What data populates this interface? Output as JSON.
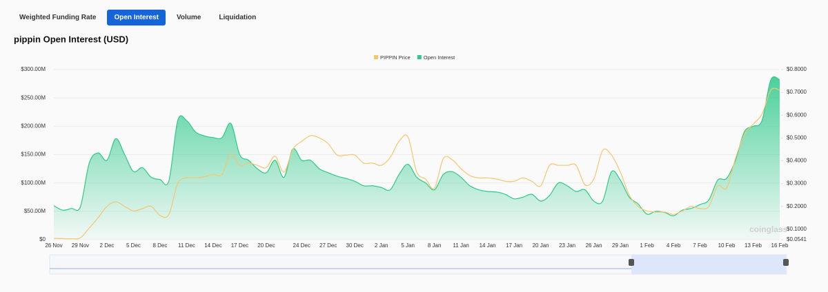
{
  "tabs": [
    "Weighted Funding Rate",
    "Open Interest",
    "Volume",
    "Liquidation"
  ],
  "active_tab": 1,
  "chart_data": {
    "type": "line",
    "title": "pippin Open Interest (USD)",
    "watermark": "coinglass",
    "categories": [
      "26 Nov",
      null,
      null,
      "29 Nov",
      null,
      null,
      "2 Dec",
      null,
      null,
      "5 Dec",
      null,
      null,
      "8 Dec",
      null,
      null,
      "11 Dec",
      null,
      null,
      "14 Dec",
      null,
      null,
      "17 Dec",
      null,
      null,
      "20 Dec",
      null,
      null,
      null,
      "24 Dec",
      null,
      null,
      "27 Dec",
      null,
      null,
      "30 Dec",
      null,
      null,
      "2 Jan",
      null,
      null,
      "5 Jan",
      null,
      null,
      "8 Jan",
      null,
      null,
      "11 Jan",
      null,
      null,
      "14 Jan",
      null,
      null,
      "17 Jan",
      null,
      null,
      "20 Jan",
      null,
      null,
      "23 Jan",
      null,
      null,
      "26 Jan",
      null,
      null,
      "29 Jan",
      null,
      null,
      "1 Feb",
      null,
      null,
      "4 Feb",
      null,
      null,
      "7 Feb",
      null,
      null,
      "10 Feb",
      null,
      null,
      "13 Feb",
      null,
      null,
      "16 Feb"
    ],
    "series": [
      {
        "name": "PIPPIN Price",
        "type": "line",
        "axis": "y2",
        "color": "#f5c66b",
        "values": [
          0.06,
          0.059,
          0.058,
          0.062,
          0.105,
          0.15,
          0.2,
          0.22,
          0.2,
          0.18,
          0.19,
          0.2,
          0.16,
          0.165,
          0.3,
          0.325,
          0.325,
          0.33,
          0.34,
          0.34,
          0.43,
          0.38,
          0.39,
          0.38,
          0.37,
          0.42,
          0.35,
          0.45,
          0.485,
          0.51,
          0.5,
          0.475,
          0.425,
          0.425,
          0.425,
          0.39,
          0.39,
          0.38,
          0.415,
          0.485,
          0.505,
          0.35,
          0.32,
          0.28,
          0.41,
          0.405,
          0.365,
          0.335,
          0.325,
          0.325,
          0.32,
          0.31,
          0.31,
          0.325,
          0.31,
          0.29,
          0.38,
          0.38,
          0.38,
          0.38,
          0.295,
          0.32,
          0.445,
          0.425,
          0.35,
          0.25,
          0.2,
          0.18,
          0.175,
          0.175,
          0.165,
          0.18,
          0.2,
          0.19,
          0.2,
          0.29,
          0.28,
          0.41,
          0.515,
          0.56,
          0.605,
          0.71,
          0.71
        ]
      },
      {
        "name": "Open Interest",
        "type": "area",
        "axis": "y",
        "color": "#2ec98a",
        "values": [
          60000000,
          52000000,
          55000000,
          58000000,
          135000000,
          153000000,
          140000000,
          178000000,
          150000000,
          120000000,
          127000000,
          110000000,
          106000000,
          104000000,
          210000000,
          210000000,
          190000000,
          183000000,
          180000000,
          180000000,
          205000000,
          150000000,
          140000000,
          125000000,
          118000000,
          140000000,
          110000000,
          160000000,
          140000000,
          140000000,
          125000000,
          118000000,
          112000000,
          108000000,
          103000000,
          95000000,
          95000000,
          92000000,
          88000000,
          115000000,
          133000000,
          110000000,
          100000000,
          88000000,
          115000000,
          120000000,
          110000000,
          95000000,
          88000000,
          85000000,
          84000000,
          80000000,
          72000000,
          75000000,
          80000000,
          68000000,
          78000000,
          100000000,
          95000000,
          85000000,
          88000000,
          68000000,
          68000000,
          120000000,
          105000000,
          75000000,
          63000000,
          45000000,
          50000000,
          48000000,
          42000000,
          52000000,
          55000000,
          62000000,
          70000000,
          105000000,
          108000000,
          140000000,
          190000000,
          200000000,
          210000000,
          282000000,
          282000000
        ]
      }
    ],
    "ylim": [
      0,
      300000000
    ],
    "yticks": [
      {
        "value": 0,
        "label": "$0"
      },
      {
        "value": 50000000,
        "label": "$50.00M"
      },
      {
        "value": 100000000,
        "label": "$100.00M"
      },
      {
        "value": 150000000,
        "label": "$150.00M"
      },
      {
        "value": 200000000,
        "label": "$200.00M"
      },
      {
        "value": 250000000,
        "label": "$250.00M"
      },
      {
        "value": 300000000,
        "label": "$300.00M"
      }
    ],
    "y2lim": [
      0.0541,
      0.8
    ],
    "y2ticks": [
      {
        "value": 0.0541,
        "label": "$0.0541"
      },
      {
        "value": 0.1,
        "label": "$0.1000"
      },
      {
        "value": 0.2,
        "label": "$0.2000"
      },
      {
        "value": 0.3,
        "label": "$0.3000"
      },
      {
        "value": 0.4,
        "label": "$0.4000"
      },
      {
        "value": 0.5,
        "label": "$0.5000"
      },
      {
        "value": 0.6,
        "label": "$0.6000"
      },
      {
        "value": 0.7,
        "label": "$0.7000"
      },
      {
        "value": 0.8,
        "label": "$0.8000"
      }
    ],
    "legend": "top"
  }
}
